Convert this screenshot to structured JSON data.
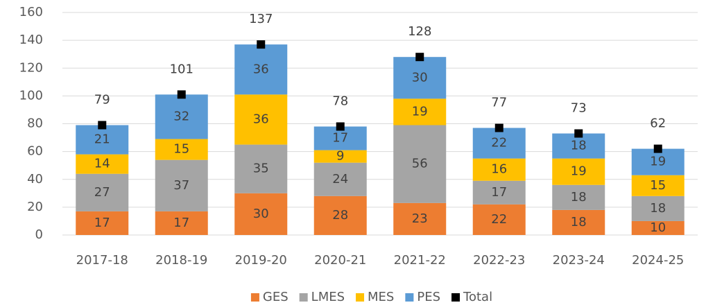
{
  "chart_data": {
    "type": "bar",
    "stacked": true,
    "categories": [
      "2017-18",
      "2018-19",
      "2019-20",
      "2020-21",
      "2021-22",
      "2022-23",
      "2023-24",
      "2024-25"
    ],
    "series": [
      {
        "name": "GES",
        "color": "#ED7D31",
        "values": [
          17,
          17,
          30,
          28,
          23,
          22,
          18,
          10
        ]
      },
      {
        "name": "LMES",
        "color": "#A5A5A5",
        "values": [
          27,
          37,
          35,
          24,
          56,
          17,
          18,
          18
        ]
      },
      {
        "name": "MES",
        "color": "#FFC000",
        "values": [
          14,
          15,
          36,
          9,
          19,
          16,
          19,
          15
        ]
      },
      {
        "name": "PES",
        "color": "#5B9BD5",
        "values": [
          21,
          32,
          36,
          17,
          30,
          22,
          18,
          19
        ]
      },
      {
        "name": "Total",
        "color": "#000000",
        "type": "marker",
        "values": [
          79,
          101,
          137,
          78,
          128,
          77,
          73,
          62
        ]
      }
    ],
    "ylim": [
      0,
      160
    ],
    "yticks": [
      0,
      20,
      40,
      60,
      80,
      100,
      120,
      140,
      160
    ],
    "grid": true,
    "legend": "bottom"
  }
}
